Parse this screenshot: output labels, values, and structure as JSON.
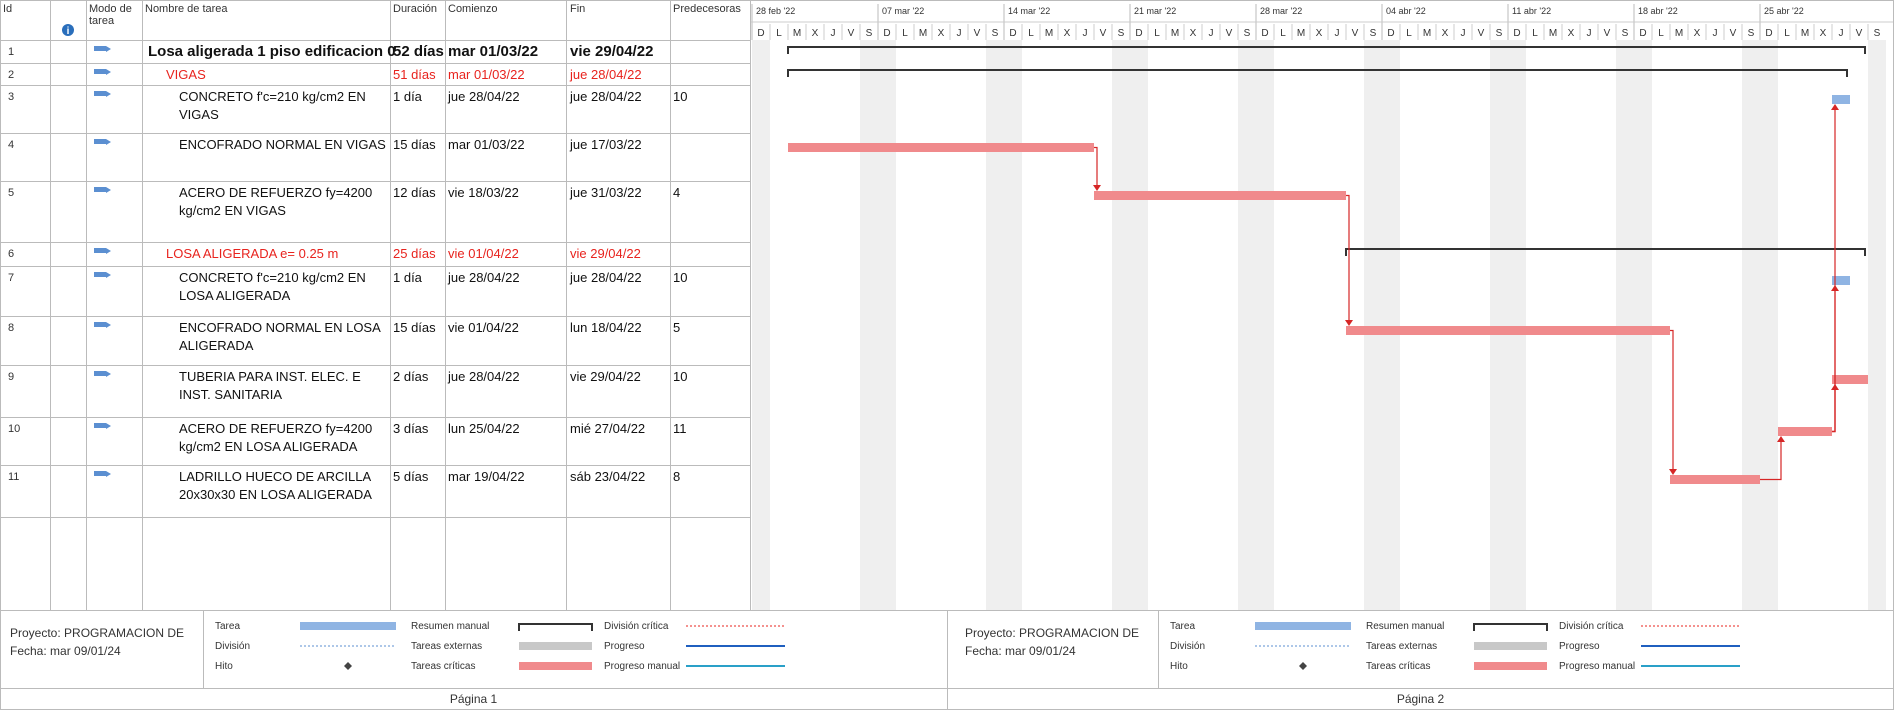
{
  "table": {
    "columns": [
      "Id",
      "Modo de tarea",
      "Nombre de tarea",
      "Duración",
      "Comienzo",
      "Fin",
      "Predecesoras"
    ],
    "rows": [
      {
        "id": 1,
        "name": "Losa aligerada 1 piso edificacion 0",
        "duration": "52 días",
        "start": "mar 01/03/22",
        "finish": "vie 29/04/22",
        "style": "project"
      },
      {
        "id": 2,
        "name": "VIGAS",
        "duration": "51 días",
        "start": "mar 01/03/22",
        "finish": "jue 28/04/22",
        "style": "summary-critical"
      },
      {
        "id": 3,
        "name": "CONCRETO f'c=210 kg/cm2 EN VIGAS",
        "duration": "1 día",
        "start": "jue 28/04/22",
        "finish": "jue 28/04/22",
        "predecessors": 10,
        "style": "normal"
      },
      {
        "id": 4,
        "name": "ENCOFRADO NORMAL EN VIGAS",
        "duration": "15 días",
        "start": "mar 01/03/22",
        "finish": "jue 17/03/22",
        "style": "critical"
      },
      {
        "id": 5,
        "name": "ACERO DE REFUERZO fy=4200 kg/cm2 EN VIGAS",
        "duration": "12 días",
        "start": "vie 18/03/22",
        "finish": "jue 31/03/22",
        "predecessors": 4,
        "style": "critical"
      },
      {
        "id": 6,
        "name": "LOSA ALIGERADA e= 0.25 m",
        "duration": "25 días",
        "start": "vie 01/04/22",
        "finish": "vie 29/04/22",
        "style": "summary-critical"
      },
      {
        "id": 7,
        "name": "CONCRETO f'c=210 kg/cm2 EN LOSA ALIGERADA",
        "duration": "1 día",
        "start": "jue 28/04/22",
        "finish": "jue 28/04/22",
        "predecessors": 10,
        "style": "normal"
      },
      {
        "id": 8,
        "name": "ENCOFRADO NORMAL EN LOSA ALIGERADA",
        "duration": "15 días",
        "start": "vie 01/04/22",
        "finish": "lun 18/04/22",
        "predecessors": 5,
        "style": "critical"
      },
      {
        "id": 9,
        "name": "TUBERIA PARA INST. ELEC. E INST. SANITARIA",
        "duration": "2 días",
        "start": "jue 28/04/22",
        "finish": "vie 29/04/22",
        "predecessors": 10,
        "style": "critical"
      },
      {
        "id": 10,
        "name": "ACERO DE REFUERZO fy=4200 kg/cm2 EN LOSA ALIGERADA",
        "duration": "3 días",
        "start": "lun 25/04/22",
        "finish": "mié 27/04/22",
        "predecessors": 11,
        "style": "critical"
      },
      {
        "id": 11,
        "name": "LADRILLO HUECO DE ARCILLA 20x30x30 EN LOSA ALIGERADA",
        "duration": "5 días",
        "start": "mar 19/04/22",
        "finish": "sáb 23/04/22",
        "predecessors": 8,
        "style": "critical"
      }
    ]
  },
  "timeline": {
    "weeks": [
      "28 feb '22",
      "07 mar '22",
      "14 mar '22",
      "21 mar '22",
      "28 mar '22",
      "04 abr '22",
      "11 abr '22",
      "18 abr '22",
      "25 abr '22"
    ],
    "day_letters": [
      "L",
      "M",
      "X",
      "J",
      "V",
      "S",
      "D"
    ]
  },
  "footer": {
    "project": "Proyecto: PROGRAMACION DE",
    "date": "Fecha: mar 09/01/24",
    "legend": [
      {
        "name": "Tarea",
        "style": "task"
      },
      {
        "name": "División",
        "style": "split"
      },
      {
        "name": "Hito",
        "style": "milestone"
      },
      {
        "name": "Resumen manual",
        "style": "manual-summary"
      },
      {
        "name": "Tareas externas",
        "style": "external"
      },
      {
        "name": "Tareas críticas",
        "style": "critical"
      },
      {
        "name": "División crítica",
        "style": "critical-split"
      },
      {
        "name": "Progreso",
        "style": "progress"
      },
      {
        "name": "Progreso manual",
        "style": "manual-progress"
      }
    ]
  },
  "pages": [
    "Página 1",
    "Página 2"
  ]
}
